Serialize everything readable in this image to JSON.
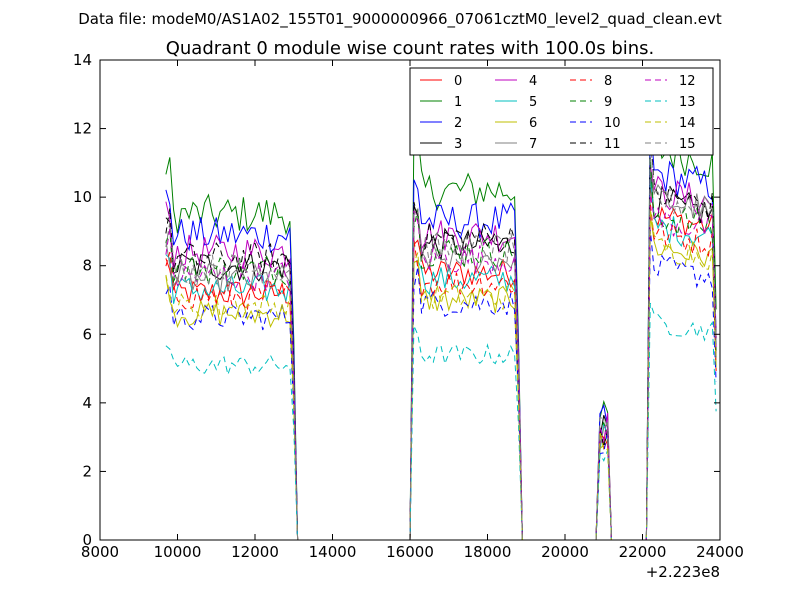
{
  "chart_data": {
    "type": "line",
    "suptitle": "Data file: modeM0/AS1A02_155T01_9000000966_07061cztM0_level2_quad_clean.evt",
    "title": "Quadrant 0 module wise count rates with 100.0s bins.",
    "xlabel": "",
    "ylabel": "",
    "x_offset_label": "+2.223e8",
    "xlim": [
      8000,
      24000
    ],
    "ylim": [
      0,
      14
    ],
    "xticks": [
      8000,
      10000,
      12000,
      14000,
      16000,
      18000,
      20000,
      22000,
      24000
    ],
    "yticks": [
      0,
      2,
      4,
      6,
      8,
      10,
      12,
      14
    ],
    "legend_position": "top-right",
    "grid": false,
    "segments": [
      {
        "start": 9700,
        "end": 13000
      },
      {
        "start": 16100,
        "end": 18800
      },
      {
        "start": 20900,
        "end": 21100
      },
      {
        "start": 22200,
        "end": 23900
      }
    ],
    "series": [
      {
        "name": "0",
        "color": "#ff0000",
        "dash": "solid",
        "levels": [
          7.2,
          7.8,
          3.1,
          9.3
        ]
      },
      {
        "name": "1",
        "color": "#008000",
        "dash": "solid",
        "levels": [
          9.5,
          10.2,
          3.5,
          11.2
        ]
      },
      {
        "name": "2",
        "color": "#0000ff",
        "dash": "solid",
        "levels": [
          8.9,
          9.3,
          3.5,
          10.5
        ]
      },
      {
        "name": "3",
        "color": "#000000",
        "dash": "solid",
        "levels": [
          8.0,
          8.6,
          3.3,
          9.7
        ]
      },
      {
        "name": "4",
        "color": "#bf00bf",
        "dash": "solid",
        "levels": [
          8.4,
          8.9,
          3.3,
          10.0
        ]
      },
      {
        "name": "5",
        "color": "#00bfbf",
        "dash": "solid",
        "levels": [
          7.3,
          7.6,
          3.0,
          9.0
        ]
      },
      {
        "name": "6",
        "color": "#bfbf00",
        "dash": "solid",
        "levels": [
          6.6,
          7.0,
          2.9,
          8.4
        ]
      },
      {
        "name": "7",
        "color": "#808080",
        "dash": "solid",
        "levels": [
          7.6,
          8.2,
          3.1,
          9.8
        ]
      },
      {
        "name": "8",
        "color": "#ff0000",
        "dash": "dashed",
        "levels": [
          7.1,
          7.5,
          3.0,
          8.8
        ]
      },
      {
        "name": "9",
        "color": "#008000",
        "dash": "dashed",
        "levels": [
          7.9,
          8.4,
          3.1,
          9.3
        ]
      },
      {
        "name": "10",
        "color": "#0000ff",
        "dash": "dashed",
        "levels": [
          6.5,
          6.9,
          2.9,
          7.8
        ]
      },
      {
        "name": "11",
        "color": "#000000",
        "dash": "dashed",
        "levels": [
          8.2,
          8.8,
          3.2,
          9.9
        ]
      },
      {
        "name": "12",
        "color": "#bf00bf",
        "dash": "dashed",
        "levels": [
          7.7,
          8.2,
          3.1,
          9.2
        ]
      },
      {
        "name": "13",
        "color": "#00bfbf",
        "dash": "dashed",
        "levels": [
          5.1,
          5.4,
          2.6,
          6.2
        ]
      },
      {
        "name": "14",
        "color": "#bfbf00",
        "dash": "dashed",
        "levels": [
          6.8,
          7.1,
          2.9,
          8.4
        ]
      },
      {
        "name": "15",
        "color": "#808080",
        "dash": "dashed",
        "levels": [
          7.9,
          8.5,
          3.1,
          9.8
        ]
      }
    ]
  }
}
